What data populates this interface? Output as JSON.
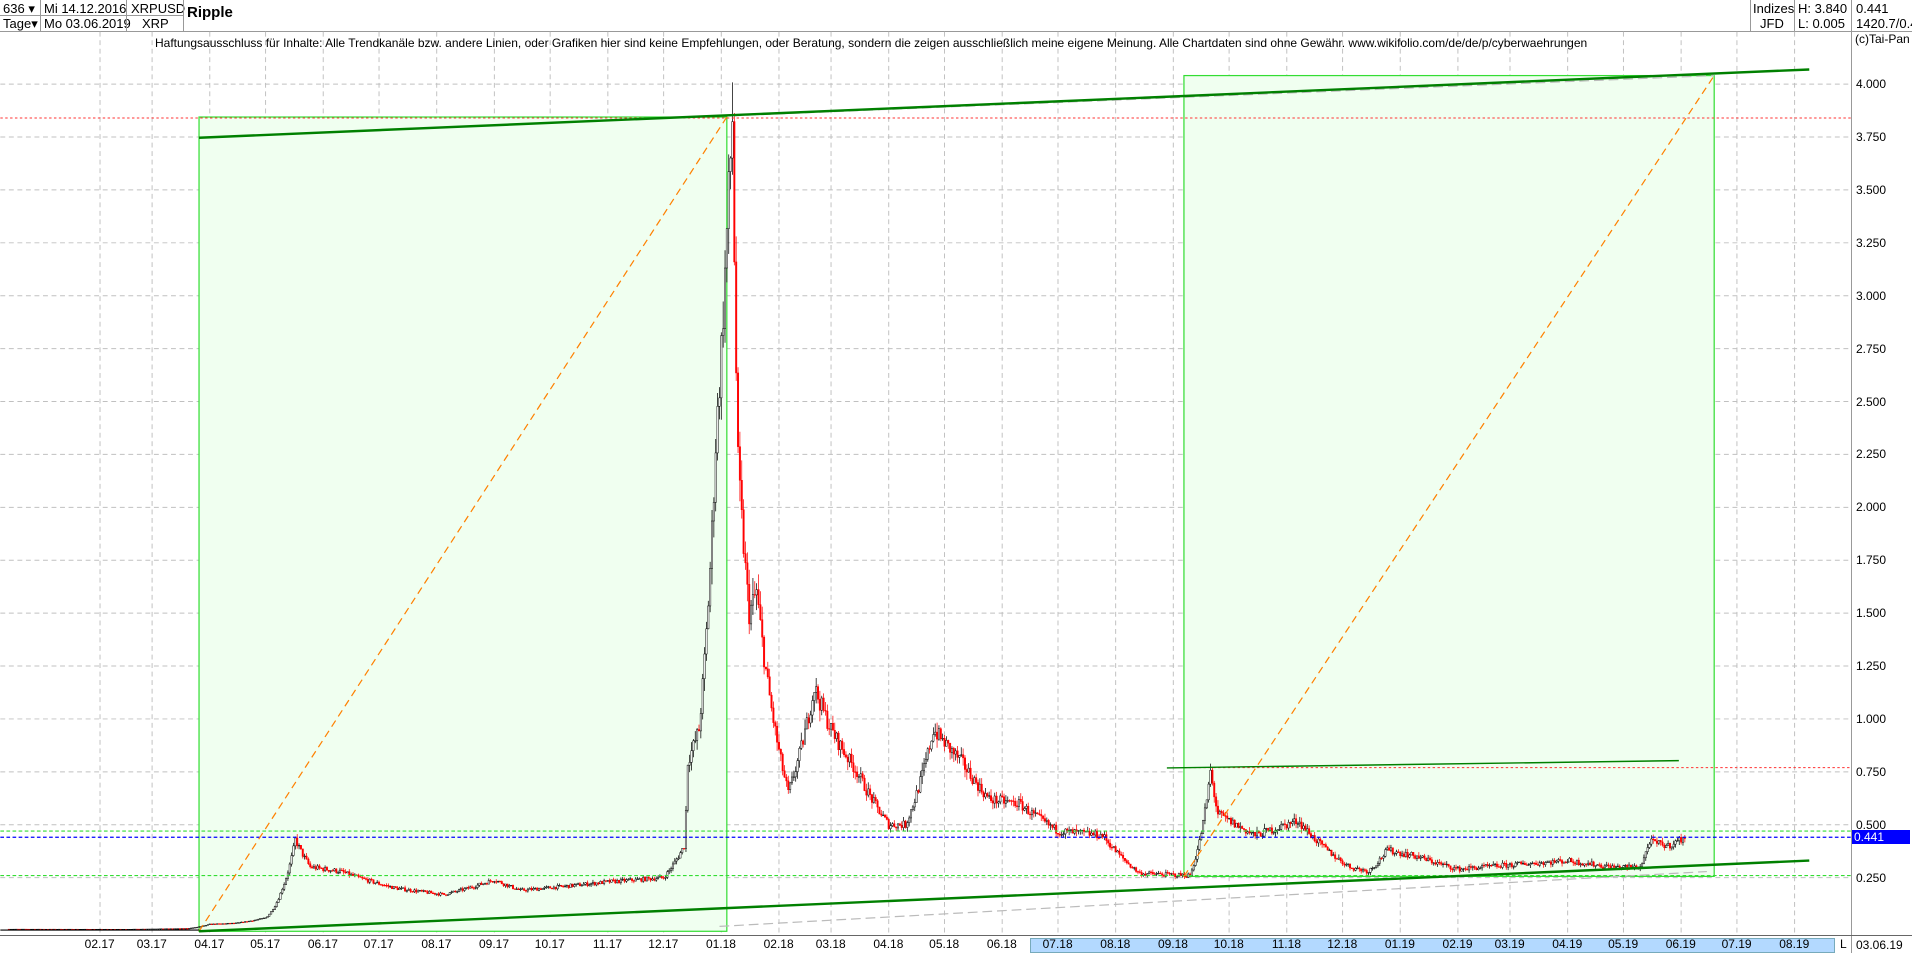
{
  "header": {
    "count": "636",
    "period": "Tage",
    "date_from": "Mi 14.12.2016",
    "date_to": "Mo 03.06.2019",
    "symbol": "XRPUSD",
    "symbol_short": "XRP",
    "title": "Ripple",
    "group": "Indizes",
    "source": "JFD",
    "high": "H: 3.840",
    "low": "L: 0.005",
    "last": "0.441",
    "extra": "1420.7/0.4"
  },
  "disclaimer": "Haftungsausschluss für Inhalte: Alle Trendkanäle bzw. andere Linien, oder Grafiken hier sind keine Empfehlungen, oder Beratung, sondern die zeigen ausschließlich meine eigene Meinung. Alle Chartdaten sind ohne Gewähr.  www.wikifolio.com/de/de/p/cyberwaehrungen",
  "copyright": "(c)Tai-Pan",
  "axis": {
    "mode": "L",
    "date": "03.06.19"
  },
  "colors": {
    "up": "#000000",
    "down": "#ff0000",
    "channel": "#008000",
    "box_fill": "#f0fff0",
    "box_stroke": "#33dd33",
    "diagonal": "#ff8000",
    "current": "#0000ff",
    "resistance": "#ff3333"
  },
  "chart_data": {
    "type": "candlestick",
    "title": "Ripple",
    "ylim": [
      0,
      4.1
    ],
    "grid": true,
    "y_ticks": [
      "0.250",
      "0.500",
      "0.750",
      "1.000",
      "1.250",
      "1.500",
      "1.750",
      "2.000",
      "2.250",
      "2.500",
      "2.750",
      "3.000",
      "3.250",
      "3.500",
      "3.750",
      "4.000"
    ],
    "current_value": "0.441",
    "x_ticks": [
      "02.17",
      "03.17",
      "04.17",
      "05.17",
      "06.17",
      "07.17",
      "08.17",
      "09.17",
      "10.17",
      "11.17",
      "12.17",
      "01.18",
      "02.18",
      "03.18",
      "04.18",
      "05.18",
      "06.18",
      "07.18",
      "08.18",
      "09.18",
      "10.18",
      "11.18",
      "12.18",
      "01.19",
      "02.19",
      "03.19",
      "04.19",
      "05.19",
      "06.19",
      "07.19",
      "08.19"
    ],
    "price_path": [
      [
        "2016-12-14",
        0.0065
      ],
      [
        "2017-02-15",
        0.006
      ],
      [
        "2017-03-20",
        0.01
      ],
      [
        "2017-04-01",
        0.03
      ],
      [
        "2017-04-15",
        0.035
      ],
      [
        "2017-05-01",
        0.06
      ],
      [
        "2017-05-10",
        0.2
      ],
      [
        "2017-05-17",
        0.43
      ],
      [
        "2017-05-25",
        0.3
      ],
      [
        "2017-06-10",
        0.28
      ],
      [
        "2017-07-10",
        0.2
      ],
      [
        "2017-08-05",
        0.17
      ],
      [
        "2017-09-01",
        0.24
      ],
      [
        "2017-09-15",
        0.19
      ],
      [
        "2017-10-10",
        0.21
      ],
      [
        "2017-11-01",
        0.23
      ],
      [
        "2017-12-01",
        0.25
      ],
      [
        "2017-12-12",
        0.4
      ],
      [
        "2017-12-14",
        0.8
      ],
      [
        "2017-12-20",
        0.95
      ],
      [
        "2017-12-29",
        2.3
      ],
      [
        "2018-01-04",
        3.3
      ],
      [
        "2018-01-07",
        3.84
      ],
      [
        "2018-01-10",
        2.2
      ],
      [
        "2018-01-16",
        1.5
      ],
      [
        "2018-01-20",
        1.6
      ],
      [
        "2018-02-06",
        0.65
      ],
      [
        "2018-02-20",
        1.15
      ],
      [
        "2018-03-01",
        0.95
      ],
      [
        "2018-03-15",
        0.75
      ],
      [
        "2018-04-01",
        0.5
      ],
      [
        "2018-04-10",
        0.5
      ],
      [
        "2018-04-25",
        0.95
      ],
      [
        "2018-05-10",
        0.8
      ],
      [
        "2018-05-25",
        0.62
      ],
      [
        "2018-06-10",
        0.6
      ],
      [
        "2018-07-01",
        0.47
      ],
      [
        "2018-07-25",
        0.45
      ],
      [
        "2018-08-14",
        0.27
      ],
      [
        "2018-09-10",
        0.26
      ],
      [
        "2018-09-21",
        0.75
      ],
      [
        "2018-09-25",
        0.55
      ],
      [
        "2018-10-15",
        0.45
      ],
      [
        "2018-11-07",
        0.52
      ],
      [
        "2018-11-20",
        0.4
      ],
      [
        "2018-12-05",
        0.3
      ],
      [
        "2018-12-15",
        0.28
      ],
      [
        "2018-12-25",
        0.38
      ],
      [
        "2019-01-10",
        0.35
      ],
      [
        "2019-02-01",
        0.29
      ],
      [
        "2019-03-01",
        0.31
      ],
      [
        "2019-04-01",
        0.33
      ],
      [
        "2019-04-25",
        0.3
      ],
      [
        "2019-05-10",
        0.3
      ],
      [
        "2019-05-15",
        0.42
      ],
      [
        "2019-05-25",
        0.4
      ],
      [
        "2019-06-03",
        0.441
      ]
    ],
    "levels": {
      "high": 3.84,
      "resistance": 0.77,
      "current": 0.441,
      "support_upper": 0.47,
      "support_lower": 0.26
    }
  }
}
